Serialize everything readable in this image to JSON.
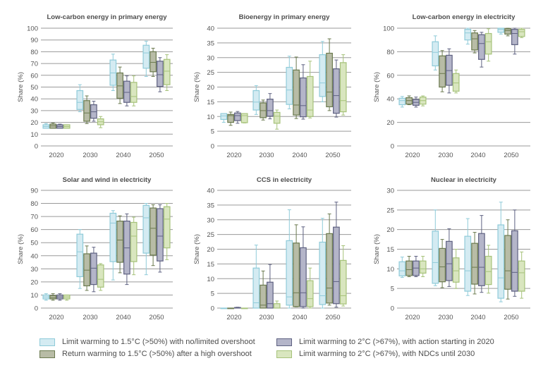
{
  "chart_data": [
    {
      "type": "box",
      "title": "Low-carbon energy in primary energy",
      "xlabel": "",
      "ylabel": "Share (%)",
      "ylim": [
        0,
        100
      ],
      "yticks": [
        0,
        10,
        20,
        30,
        40,
        50,
        60,
        70,
        80,
        90,
        100
      ],
      "categories": [
        "2020",
        "2030",
        "2040",
        "2050"
      ],
      "grid": true,
      "series": [
        {
          "name": "1.5C-low-OS",
          "boxes": [
            [
              15,
              15,
              16.5,
              18,
              19
            ],
            [
              29,
              31,
              37,
              47,
              52
            ],
            [
              47,
              51.5,
              62,
              73,
              78
            ],
            [
              59,
              66,
              79,
              85.5,
              89
            ]
          ]
        },
        {
          "name": "1.5C-high-OS",
          "boxes": [
            [
              15,
              15,
              17,
              18.5,
              19.5
            ],
            [
              19,
              21,
              28,
              38.5,
              42.5
            ],
            [
              36,
              40.5,
              51,
              62,
              67
            ],
            [
              59,
              63,
              71,
              80,
              83
            ]
          ]
        },
        {
          "name": "2C-2020",
          "boxes": [
            [
              15,
              15,
              16.5,
              18,
              18.5
            ],
            [
              21,
              23.5,
              29,
              35,
              38
            ],
            [
              34,
              37,
              45.5,
              55,
              59.5
            ],
            [
              46,
              50.5,
              60.5,
              72,
              75
            ]
          ]
        },
        {
          "name": "2C-NDC",
          "boxes": [
            [
              15,
              15,
              16.5,
              18,
              18
            ],
            [
              15.5,
              18,
              20.5,
              23,
              25
            ],
            [
              34,
              37,
              42,
              54,
              59.5
            ],
            [
              47,
              52,
              63.5,
              73.5,
              77.5
            ]
          ]
        }
      ]
    },
    {
      "type": "box",
      "title": "Bioenergy in primary energy",
      "xlabel": "",
      "ylabel": "Share (%)",
      "ylim": [
        0,
        40
      ],
      "yticks": [
        0,
        5,
        10,
        15,
        20,
        25,
        30,
        35,
        40
      ],
      "categories": [
        "2020",
        "2030",
        "2040",
        "2050"
      ],
      "grid": true,
      "series": [
        {
          "name": "1.5C-low-OS",
          "boxes": [
            [
              8,
              9,
              10.2,
              11,
              11
            ],
            [
              10.7,
              12.2,
              14.9,
              18.8,
              20.5
            ],
            [
              12.6,
              14.1,
              19,
              26.7,
              30.5
            ],
            [
              15,
              16.8,
              21.4,
              31,
              35.5
            ]
          ]
        },
        {
          "name": "1.5C-high-OS",
          "boxes": [
            [
              7,
              8,
              10.3,
              10.7,
              11.5
            ],
            [
              8.8,
              9.6,
              12,
              14.6,
              15.6
            ],
            [
              9.3,
              10.5,
              13.9,
              25.8,
              30.2
            ],
            [
              12,
              13.3,
              18.3,
              31.5,
              36.4
            ]
          ]
        },
        {
          "name": "2C-2020",
          "boxes": [
            [
              7.7,
              8.6,
              10.3,
              11.2,
              11.7
            ],
            [
              9.2,
              10.1,
              12,
              15.9,
              17.8
            ],
            [
              9.1,
              9.9,
              13.7,
              23.1,
              27.6
            ],
            [
              9.8,
              11.1,
              17.1,
              26.2,
              29.2
            ]
          ]
        },
        {
          "name": "2C-NDC",
          "boxes": [
            [
              7.8,
              7.9,
              10.3,
              11,
              11
            ],
            [
              5.7,
              7.7,
              10.1,
              11.4,
              12.2
            ],
            [
              9.5,
              10,
              12.2,
              23.6,
              28.8
            ],
            [
              10.5,
              11.6,
              15.4,
              28.3,
              31
            ]
          ]
        }
      ]
    },
    {
      "type": "box",
      "title": "Low-carbon energy in electricity",
      "xlabel": "",
      "ylabel": "Share (%)",
      "ylim": [
        0,
        100
      ],
      "yticks": [
        0,
        20,
        40,
        60,
        80,
        100
      ],
      "categories": [
        "2020",
        "2030",
        "2040",
        "2050"
      ],
      "grid": true,
      "series": [
        {
          "name": "1.5C-low-OS",
          "boxes": [
            [
              33,
              35,
              38.5,
              40.5,
              42
            ],
            [
              64.5,
              68,
              79.5,
              88.5,
              93.5
            ],
            [
              86.5,
              90,
              96,
              99,
              100
            ],
            [
              95,
              96.5,
              99,
              100,
              100
            ]
          ]
        },
        {
          "name": "1.5C-high-OS",
          "boxes": [
            [
              35,
              35.5,
              38.5,
              41,
              42.5
            ],
            [
              46,
              50,
              61.5,
              76.5,
              81
            ],
            [
              79,
              81.5,
              91,
              96,
              98
            ],
            [
              93.5,
              95,
              98,
              99.5,
              100
            ]
          ]
        },
        {
          "name": "2C-2020",
          "boxes": [
            [
              33,
              34.5,
              37,
              39.5,
              41.5
            ],
            [
              45,
              51.5,
              64,
              77,
              82.5
            ],
            [
              67,
              73.5,
              87,
              94.5,
              96.5
            ],
            [
              78,
              86,
              95.5,
              99,
              100
            ]
          ]
        },
        {
          "name": "2C-NDC",
          "boxes": [
            [
              34,
              35.5,
              38.5,
              41.5,
              42.5
            ],
            [
              45,
              46.5,
              53.5,
              61.5,
              64.5
            ],
            [
              72,
              78,
              88.5,
              95.5,
              99.5
            ],
            [
              92,
              93,
              97,
              99,
              100
            ]
          ]
        }
      ]
    },
    {
      "type": "box",
      "title": "Solar and wind in electricity",
      "xlabel": "",
      "ylabel": "Share (%)",
      "ylim": [
        0,
        90
      ],
      "yticks": [
        0,
        10,
        20,
        30,
        40,
        50,
        60,
        70,
        80,
        90
      ],
      "categories": [
        "2020",
        "2030",
        "2040",
        "2050"
      ],
      "grid": true,
      "series": [
        {
          "name": "1.5C-low-OS",
          "boxes": [
            [
              6,
              7,
              8.5,
              10,
              11
            ],
            [
              15,
              24,
              43,
              56.5,
              60
            ],
            [
              21.5,
              35.5,
              65,
              72.5,
              74.5
            ],
            [
              25.5,
              42,
              69,
              78.5,
              80
            ]
          ]
        },
        {
          "name": "1.5C-high-OS",
          "boxes": [
            [
              6,
              7,
              8,
              9.5,
              11
            ],
            [
              13.5,
              17,
              29,
              41.5,
              47.5
            ],
            [
              27,
              35,
              52,
              66.5,
              70.5
            ],
            [
              32.5,
              40.5,
              61,
              76.5,
              79
            ]
          ]
        },
        {
          "name": "2C-2020",
          "boxes": [
            [
              6,
              7,
              8.5,
              10,
              11
            ],
            [
              12.5,
              18,
              30.5,
              42,
              46.5
            ],
            [
              18,
              26,
              46,
              66.5,
              72
            ],
            [
              27.5,
              36,
              55,
              76,
              79
            ]
          ]
        },
        {
          "name": "2C-NDC",
          "boxes": [
            [
              6,
              7,
              8.5,
              10,
              10
            ],
            [
              13.5,
              16,
              22,
              33,
              34
            ],
            [
              25.5,
              35.5,
              55,
              65.5,
              69.5
            ],
            [
              37,
              46,
              68,
              77.5,
              80
            ]
          ]
        }
      ]
    },
    {
      "type": "box",
      "title": "CCS in electricity",
      "xlabel": "",
      "ylabel": "Share (%)",
      "ylim": [
        0,
        40
      ],
      "yticks": [
        0,
        5,
        10,
        15,
        20,
        25,
        30,
        35,
        40
      ],
      "categories": [
        "2020",
        "2030",
        "2040",
        "2050"
      ],
      "grid": true,
      "series": [
        {
          "name": "1.5C-low-OS",
          "boxes": [
            [
              0,
              0,
              0,
              0,
              0
            ],
            [
              0,
              0,
              1.8,
              13.6,
              21.4
            ],
            [
              0,
              1,
              3.8,
              22.9,
              33.4
            ],
            [
              0,
              1.2,
              4.2,
              22.4,
              30.5
            ]
          ]
        },
        {
          "name": "1.5C-high-OS",
          "boxes": [
            [
              0,
              0,
              0,
              0,
              0
            ],
            [
              0,
              0,
              1,
              7.8,
              12.6
            ],
            [
              0.4,
              0.5,
              5.2,
              22.1,
              28.3
            ],
            [
              1,
              1.7,
              6.8,
              25.3,
              32
            ]
          ]
        },
        {
          "name": "2C-2020",
          "boxes": [
            [
              0,
              0,
              0,
              0.2,
              0.3
            ],
            [
              0,
              0,
              1.5,
              8.8,
              14.8
            ],
            [
              0,
              0.5,
              5.2,
              20.5,
              27.6
            ],
            [
              0.3,
              1.5,
              9,
              27.5,
              36
            ]
          ]
        },
        {
          "name": "2C-NDC",
          "boxes": [
            [
              0,
              0,
              0,
              0,
              0
            ],
            [
              0,
              0,
              0,
              1.5,
              2.4
            ],
            [
              0,
              0.5,
              3.2,
              9.3,
              13.6
            ],
            [
              0.7,
              1.4,
              4.2,
              16.2,
              21.2
            ]
          ]
        }
      ]
    },
    {
      "type": "box",
      "title": "Nuclear in electricity",
      "xlabel": "",
      "ylabel": "Share (%)",
      "ylim": [
        0,
        30
      ],
      "yticks": [
        0,
        5,
        10,
        15,
        20,
        25,
        30
      ],
      "categories": [
        "2020",
        "2030",
        "2040",
        "2050"
      ],
      "grid": true,
      "series": [
        {
          "name": "1.5C-low-OS",
          "boxes": [
            [
              7.8,
              8.2,
              9.5,
              11.8,
              13
            ],
            [
              5.7,
              6.3,
              11.6,
              19.6,
              25
            ],
            [
              3.2,
              4.3,
              9.5,
              18.3,
              22.8
            ],
            [
              1.6,
              2.5,
              7.7,
              21.2,
              27
            ]
          ]
        },
        {
          "name": "1.5C-high-OS",
          "boxes": [
            [
              8,
              8.3,
              9.8,
              12,
              13.2
            ],
            [
              5.2,
              6.7,
              10.5,
              15.2,
              17.5
            ],
            [
              3.6,
              6.1,
              10.4,
              16.5,
              19.3
            ],
            [
              2.3,
              4.8,
              9.5,
              18.5,
              22.5
            ]
          ]
        },
        {
          "name": "2C-2020",
          "boxes": [
            [
              8,
              8.3,
              10.2,
              12,
              13.2
            ],
            [
              5.5,
              7,
              11.3,
              17,
              20.2
            ],
            [
              4,
              5.7,
              10.4,
              19,
              23.6
            ],
            [
              3,
              4.3,
              9.1,
              19.7,
              25
            ]
          ]
        },
        {
          "name": "2C-NDC",
          "boxes": [
            [
              8,
              8.9,
              10,
              12,
              13.2
            ],
            [
              5,
              6.6,
              9.5,
              12.8,
              15
            ],
            [
              3.8,
              6,
              9.3,
              13.2,
              16
            ],
            [
              2.5,
              4.3,
              9,
              12,
              14.3
            ]
          ]
        }
      ]
    }
  ],
  "series_styles": [
    {
      "name": "1.5C-low-OS",
      "fill": "#d4ebf2",
      "stroke": "#8fcbd9"
    },
    {
      "name": "1.5C-high-OS",
      "fill": "#b8bca6",
      "stroke": "#6b7a4f"
    },
    {
      "name": "2C-2020",
      "fill": "#b4b5c9",
      "stroke": "#5e6181"
    },
    {
      "name": "2C-NDC",
      "fill": "#d9e6bf",
      "stroke": "#a6c27a"
    }
  ],
  "legend": {
    "placement": "bottom",
    "items": [
      {
        "label": "Limit warming to 1.5°C (>50%) with no/limited overshoot"
      },
      {
        "label": "Return warming to 1.5°C (>50%) after a high overshoot"
      },
      {
        "label": "Limit warming to 2°C (>67%), with action starting in 2020"
      },
      {
        "label": "Limit warming to 2°C (>67%), with NDCs until 2030"
      }
    ]
  }
}
